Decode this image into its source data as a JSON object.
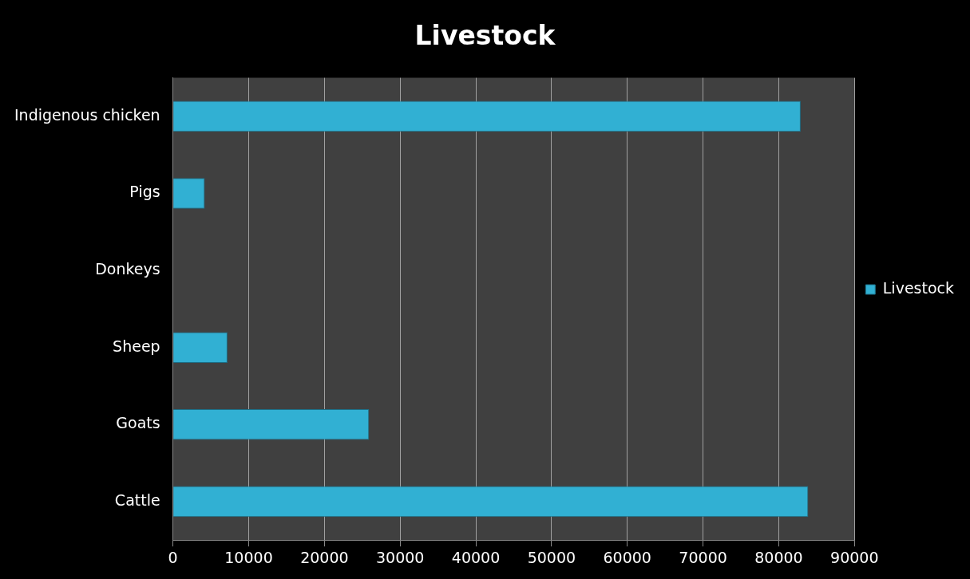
{
  "chart_data": {
    "type": "bar",
    "orientation": "horizontal",
    "title": "Livestock",
    "categories": [
      "Indigenous chicken",
      "Pigs",
      "Donkeys",
      "Sheep",
      "Goats",
      "Cattle"
    ],
    "series": [
      {
        "name": "Livestock",
        "color": "#31b0d3",
        "values": [
          82900,
          4200,
          null,
          7200,
          25900,
          83900
        ]
      }
    ],
    "xlim": [
      0,
      90000
    ],
    "xticks": [
      0,
      10000,
      20000,
      30000,
      40000,
      50000,
      60000,
      70000,
      80000,
      90000
    ],
    "grid": "x",
    "legend": "right"
  }
}
